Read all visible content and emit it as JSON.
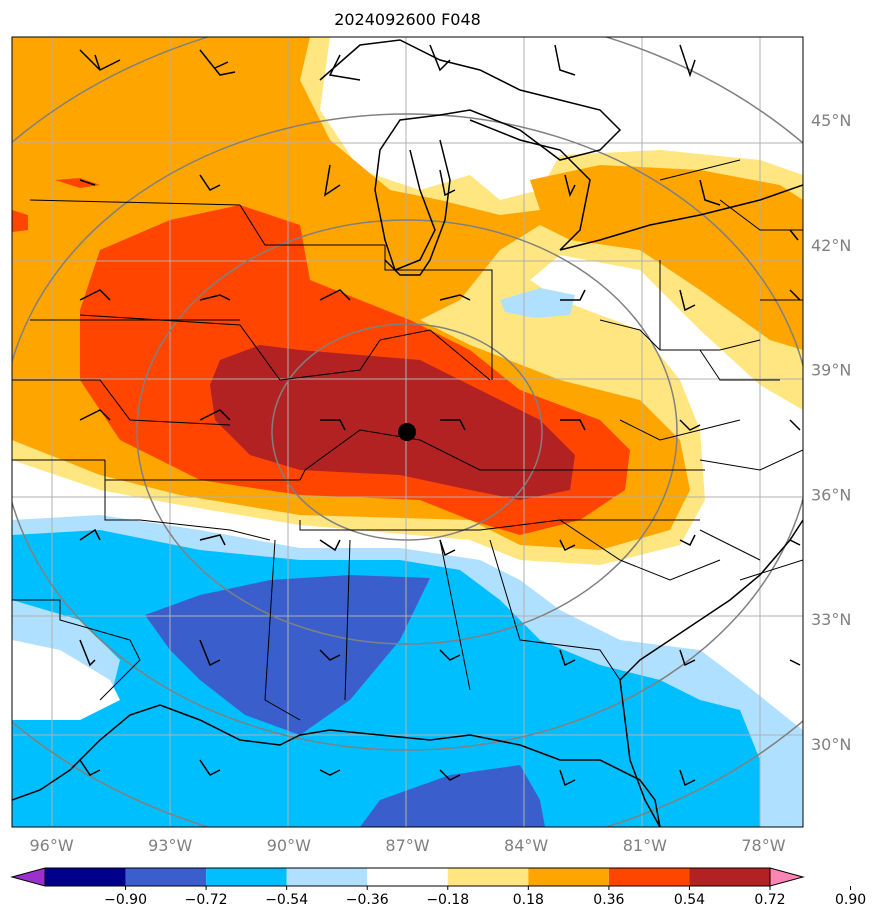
{
  "title": "2024092600 F048",
  "map": {
    "lon_range": [
      -97,
      -77
    ],
    "lat_range": [
      28,
      47
    ],
    "lon_labels": [
      "96°W",
      "93°W",
      "90°W",
      "87°W",
      "84°W",
      "81°W",
      "78°W"
    ],
    "lon_values": [
      -96,
      -93,
      -90,
      -87,
      -84,
      -81,
      -78
    ],
    "lat_labels": [
      "45°N",
      "42°N",
      "39°N",
      "36°N",
      "33°N",
      "30°N"
    ],
    "lat_values": [
      45,
      42,
      39,
      36,
      33,
      30
    ],
    "center_marker": {
      "lon": -87.0,
      "lat": 37.7
    },
    "range_rings": true,
    "gridlines": true,
    "grid_color": "#b0b0b0",
    "ring_color": "#808080"
  },
  "colorbar": {
    "levels": [
      "−0.90",
      "−0.72",
      "−0.54",
      "−0.36",
      "−0.18",
      "0.18",
      "0.36",
      "0.54",
      "0.72",
      "0.90"
    ],
    "colors": [
      "#9b30d0",
      "#00008b",
      "#3a5fcd",
      "#00bfff",
      "#b0e0ff",
      "#ffffff",
      "#ffe680",
      "#ffa500",
      "#ff4500",
      "#b22222",
      "#ff85b4"
    ]
  },
  "wind_barbs": true
}
